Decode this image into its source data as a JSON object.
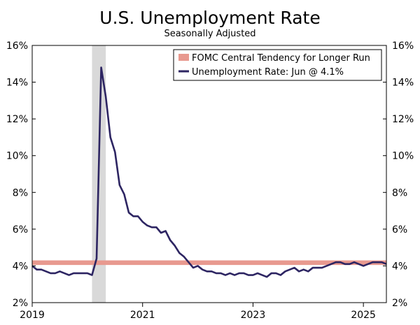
{
  "chart_data": {
    "type": "line",
    "title": "U.S. Unemployment Rate",
    "subtitle": "Seasonally Adjusted",
    "y_unit": "%",
    "ylim": [
      2,
      16
    ],
    "y_ticks": [
      2,
      4,
      6,
      8,
      10,
      12,
      14,
      16
    ],
    "y_tick_labels": [
      "2%",
      "4%",
      "6%",
      "8%",
      "10%",
      "12%",
      "14%",
      "16%"
    ],
    "xlim": [
      "2019-01",
      "2025-06"
    ],
    "x_ticks": [
      "2019-01",
      "2021-01",
      "2023-01",
      "2025-01"
    ],
    "x_tick_labels": [
      "2019",
      "2021",
      "2023",
      "2025"
    ],
    "grid": false,
    "legend_placement": "top-right",
    "recession_shading": {
      "start": "2020-02",
      "end": "2020-04",
      "color": "#d9d9d9"
    },
    "fomc_band": {
      "name": "FOMC Central Tendency for Longer Run",
      "low": 4.05,
      "high": 4.3,
      "color": "#e8998f"
    },
    "series": [
      {
        "name": "Unemployment Rate: Jun @ 4.1%",
        "color": "#2d2562",
        "x": [
          "2019-01",
          "2019-02",
          "2019-03",
          "2019-04",
          "2019-05",
          "2019-06",
          "2019-07",
          "2019-08",
          "2019-09",
          "2019-10",
          "2019-11",
          "2019-12",
          "2020-01",
          "2020-02",
          "2020-03",
          "2020-04",
          "2020-05",
          "2020-06",
          "2020-07",
          "2020-08",
          "2020-09",
          "2020-10",
          "2020-11",
          "2020-12",
          "2021-01",
          "2021-02",
          "2021-03",
          "2021-04",
          "2021-05",
          "2021-06",
          "2021-07",
          "2021-08",
          "2021-09",
          "2021-10",
          "2021-11",
          "2021-12",
          "2022-01",
          "2022-02",
          "2022-03",
          "2022-04",
          "2022-05",
          "2022-06",
          "2022-07",
          "2022-08",
          "2022-09",
          "2022-10",
          "2022-11",
          "2022-12",
          "2023-01",
          "2023-02",
          "2023-03",
          "2023-04",
          "2023-05",
          "2023-06",
          "2023-07",
          "2023-08",
          "2023-09",
          "2023-10",
          "2023-11",
          "2023-12",
          "2024-01",
          "2024-02",
          "2024-03",
          "2024-04",
          "2024-05",
          "2024-06",
          "2024-07",
          "2024-08",
          "2024-09",
          "2024-10",
          "2024-11",
          "2024-12",
          "2025-01",
          "2025-02",
          "2025-03",
          "2025-04",
          "2025-05",
          "2025-06"
        ],
        "values": [
          4.0,
          3.8,
          3.8,
          3.7,
          3.6,
          3.6,
          3.7,
          3.6,
          3.5,
          3.6,
          3.6,
          3.6,
          3.6,
          3.5,
          4.4,
          14.8,
          13.2,
          11.0,
          10.2,
          8.4,
          7.9,
          6.9,
          6.7,
          6.7,
          6.4,
          6.2,
          6.1,
          6.1,
          5.8,
          5.9,
          5.4,
          5.1,
          4.7,
          4.5,
          4.2,
          3.9,
          4.0,
          3.8,
          3.7,
          3.7,
          3.6,
          3.6,
          3.5,
          3.6,
          3.5,
          3.6,
          3.6,
          3.5,
          3.5,
          3.6,
          3.5,
          3.4,
          3.6,
          3.6,
          3.5,
          3.7,
          3.8,
          3.9,
          3.7,
          3.8,
          3.7,
          3.9,
          3.9,
          3.9,
          4.0,
          4.1,
          4.2,
          4.2,
          4.1,
          4.1,
          4.2,
          4.1,
          4.0,
          4.1,
          4.2,
          4.2,
          4.2,
          4.1
        ]
      }
    ]
  }
}
